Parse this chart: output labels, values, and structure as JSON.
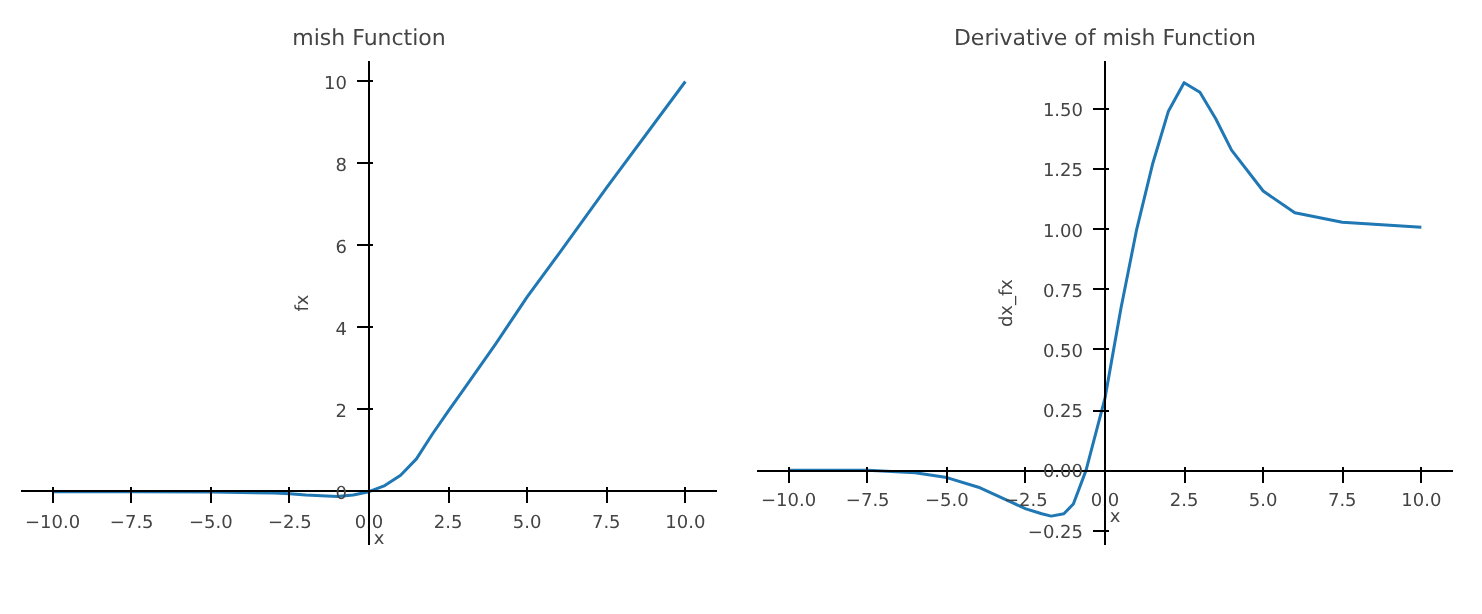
{
  "chart_data": [
    {
      "type": "line",
      "title": "mish Function",
      "xlabel": "x",
      "ylabel": "fx",
      "x": [
        -10,
        -7.5,
        -5,
        -3,
        -2.5,
        -2,
        -1.5,
        -1,
        -0.5,
        0,
        0.5,
        1,
        1.5,
        2,
        2.5,
        3,
        4,
        5,
        6,
        7.5,
        10
      ],
      "series": [
        {
          "color": "#1f77b4",
          "values": [
            0,
            0,
            -0.01,
            -0.03,
            -0.05,
            -0.08,
            -0.1,
            -0.12,
            -0.08,
            0,
            0.15,
            0.4,
            0.8,
            1.4,
            1.96,
            2.5,
            3.6,
            4.75,
            5.8,
            7.4,
            10
          ]
        }
      ],
      "xlim": [
        -11,
        11
      ],
      "ylim": [
        -1.3,
        10.5
      ],
      "xticks": [
        {
          "value": -10,
          "label": "−10.0"
        },
        {
          "value": -7.5,
          "label": "−7.5"
        },
        {
          "value": -5,
          "label": "−5.0"
        },
        {
          "value": -2.5,
          "label": "−2.5"
        },
        {
          "value": 0,
          "label": "0.0"
        },
        {
          "value": 2.5,
          "label": "2.5"
        },
        {
          "value": 5,
          "label": "5.0"
        },
        {
          "value": 7.5,
          "label": "7.5"
        },
        {
          "value": 10,
          "label": "10.0"
        }
      ],
      "yticks": [
        0,
        2,
        4,
        6,
        8,
        10
      ],
      "grid": false,
      "line_style": "solid"
    },
    {
      "type": "line",
      "title": "Derivative of mish Function",
      "xlabel": "x",
      "ylabel": "dx_fx",
      "x": [
        -10,
        -7.5,
        -6,
        -5,
        -4,
        -3,
        -2.5,
        -2,
        -1.7,
        -1.3,
        -1,
        -0.6,
        0,
        0.5,
        1,
        1.5,
        2,
        2.5,
        3,
        3.5,
        4,
        5,
        6,
        7.5,
        10
      ],
      "series": [
        {
          "color": "#1f77b4",
          "values": [
            0,
            0,
            -0.01,
            -0.03,
            -0.07,
            -0.13,
            -0.16,
            -0.18,
            -0.19,
            -0.18,
            -0.14,
            0,
            0.3,
            0.67,
            1.0,
            1.27,
            1.49,
            1.61,
            1.57,
            1.46,
            1.33,
            1.16,
            1.07,
            1.03,
            1.01
          ]
        }
      ],
      "xlim": [
        -11,
        11
      ],
      "ylim": [
        -0.31,
        1.7
      ],
      "xticks": [
        {
          "value": -10,
          "label": "−10.0"
        },
        {
          "value": -7.5,
          "label": "−7.5"
        },
        {
          "value": -5,
          "label": "−5.0"
        },
        {
          "value": -2.5,
          "label": "−2.5"
        },
        {
          "value": 0,
          "label": "0.0"
        },
        {
          "value": 2.5,
          "label": "2.5"
        },
        {
          "value": 5,
          "label": "5.0"
        },
        {
          "value": 7.5,
          "label": "7.5"
        },
        {
          "value": 10,
          "label": "10.0"
        }
      ],
      "yticks": [
        {
          "value": -0.25,
          "label": "−0.25"
        },
        {
          "value": 0,
          "label": "0.00"
        },
        {
          "value": 0.25,
          "label": "0.25"
        },
        {
          "value": 0.5,
          "label": "0.50"
        },
        {
          "value": 0.75,
          "label": "0.75"
        },
        {
          "value": 1,
          "label": "1.00"
        },
        {
          "value": 1.25,
          "label": "1.25"
        },
        {
          "value": 1.5,
          "label": "1.50"
        }
      ],
      "grid": false,
      "line_style": "solid"
    }
  ]
}
